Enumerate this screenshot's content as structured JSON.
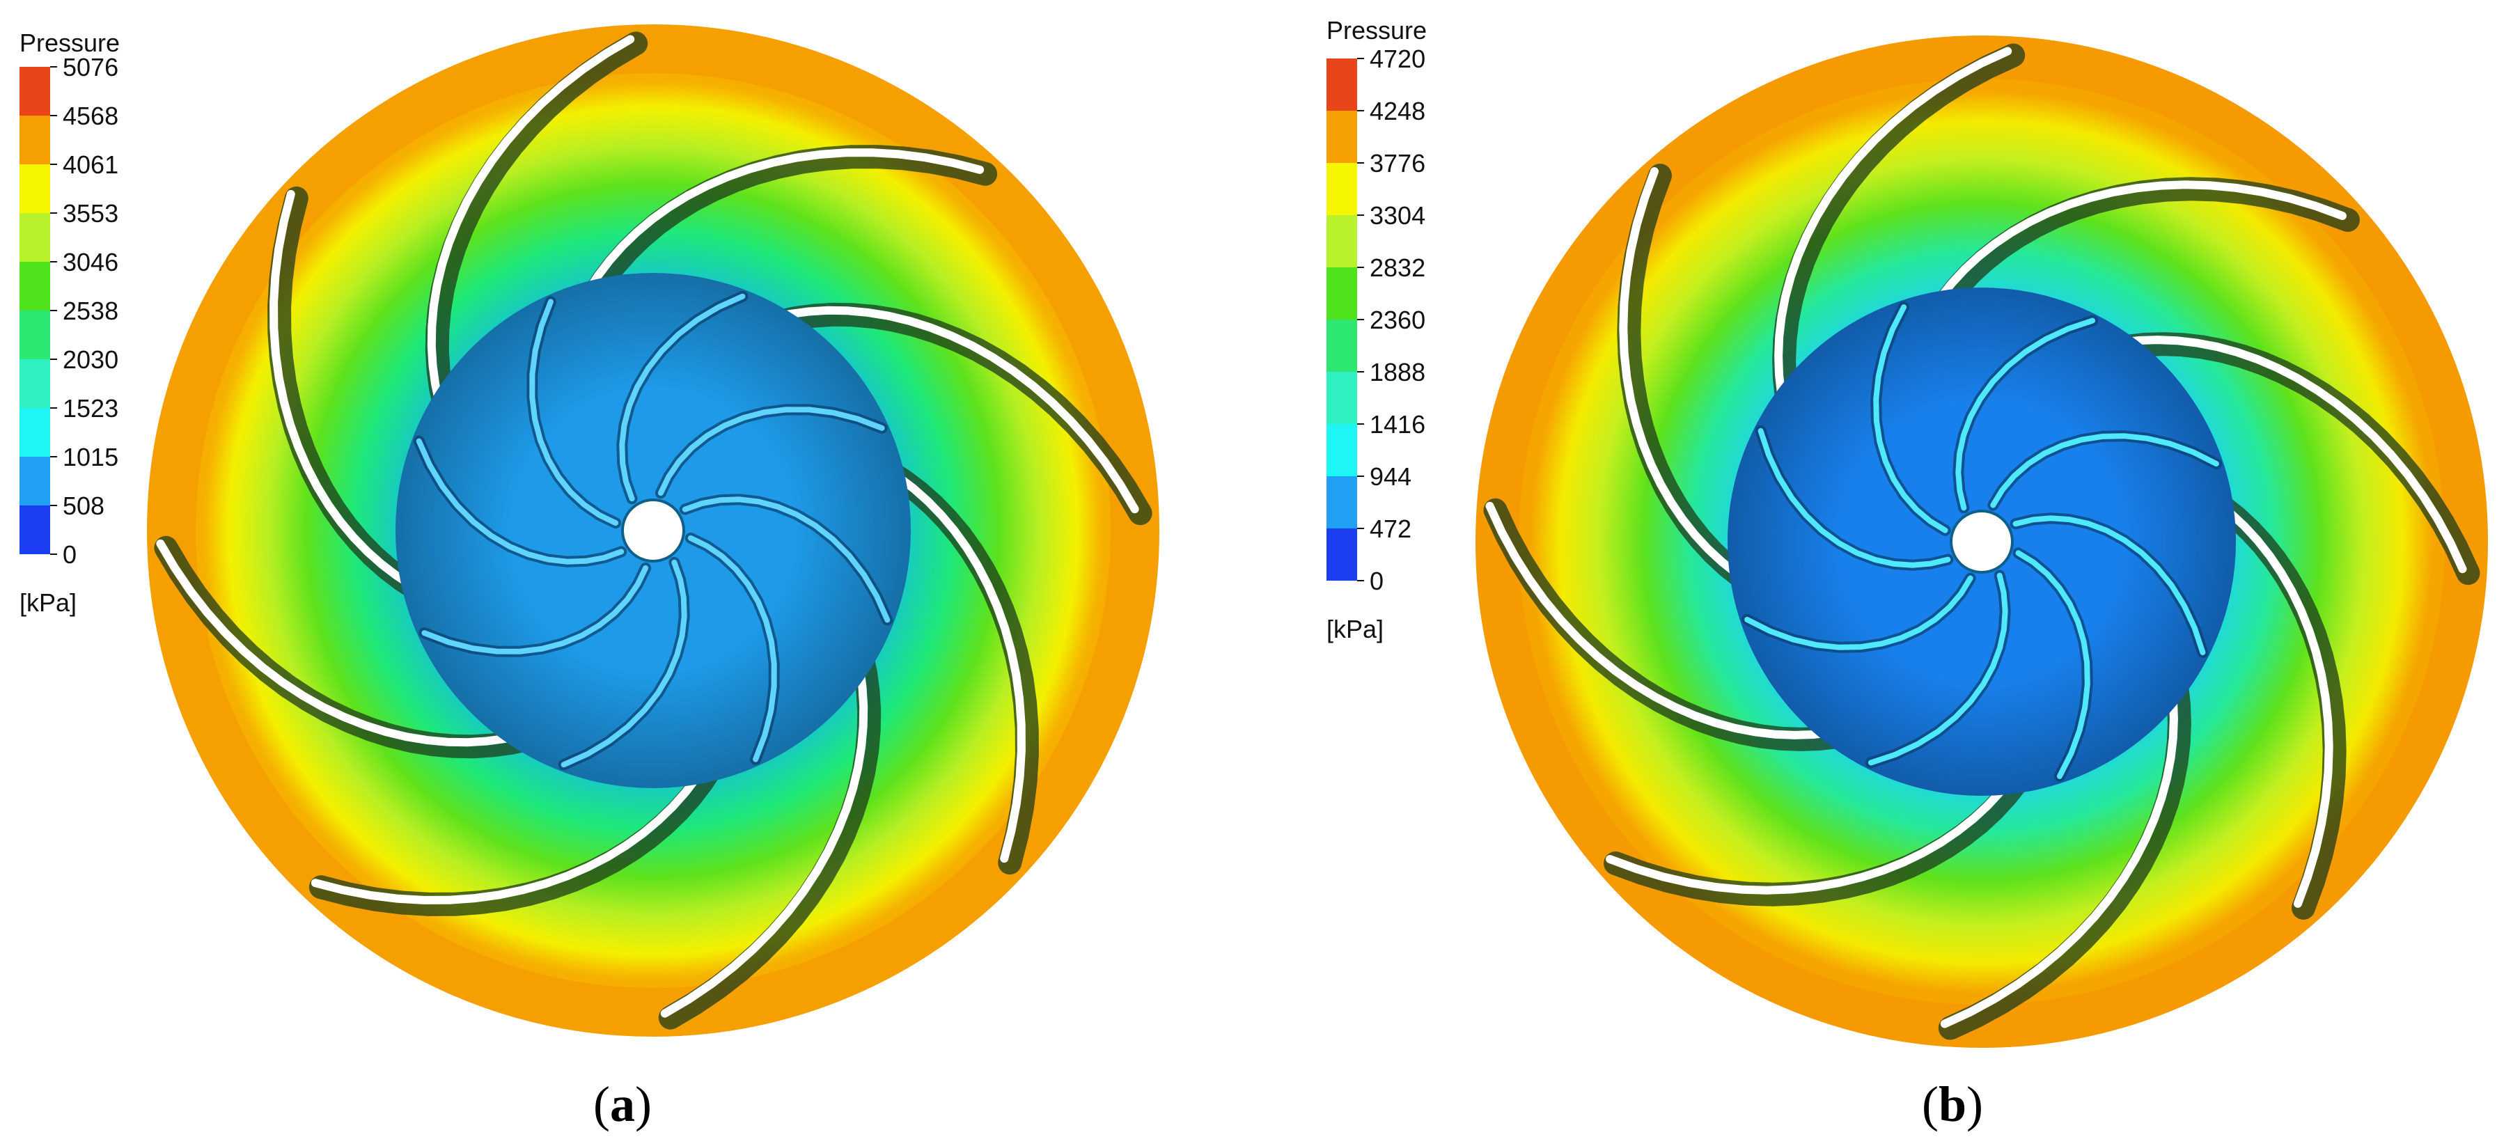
{
  "panels": [
    {
      "caption_open": "(",
      "caption_letter": "a",
      "caption_close": ")",
      "legend": {
        "title": "Pressure",
        "unit": "[kPa]",
        "ticks": [
          "5076",
          "4568",
          "4061",
          "3553",
          "3046",
          "2538",
          "2030",
          "1523",
          "1015",
          "508",
          "0"
        ]
      },
      "impeller": {
        "outer_blades": 8,
        "inner_blades": 8
      }
    },
    {
      "caption_open": "(",
      "caption_letter": "b",
      "caption_close": ")",
      "legend": {
        "title": "Pressure",
        "unit": "[kPa]",
        "ticks": [
          "4720",
          "4248",
          "3776",
          "3304",
          "2832",
          "2360",
          "1888",
          "1416",
          "944",
          "472",
          "0"
        ]
      },
      "impeller": {
        "outer_blades": 8,
        "inner_blades": 8
      }
    }
  ],
  "colormap": [
    "#e8461a",
    "#f5a000",
    "#f6f600",
    "#b8f22a",
    "#4fe31c",
    "#2ce872",
    "#2ef0c0",
    "#1ef6f6",
    "#1fa0f5",
    "#1b3ff0"
  ]
}
